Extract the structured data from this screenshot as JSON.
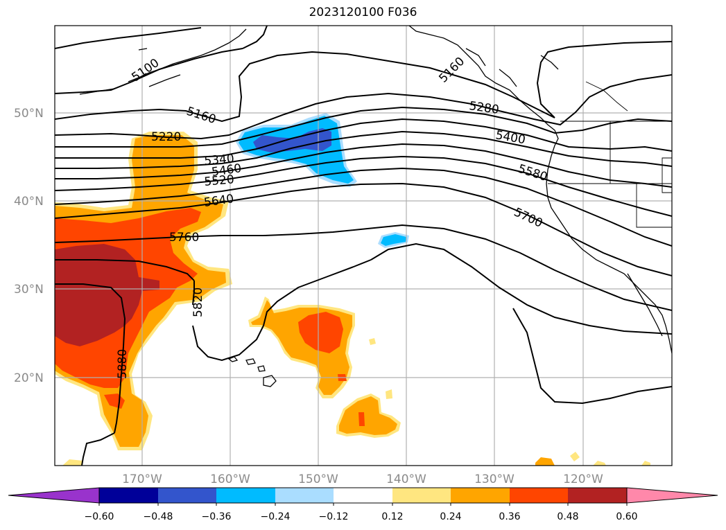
{
  "title": "2023120100 F036",
  "map": {
    "lat_labels": [
      "50°N",
      "40°N",
      "30°N",
      "20°N"
    ],
    "lon_labels": [
      "170°W",
      "160°W",
      "150°W",
      "140°W",
      "130°W",
      "120°W"
    ],
    "contour_labels": [
      "5100",
      "5160",
      "5160",
      "5220",
      "5280",
      "5340",
      "5400",
      "5460",
      "5520",
      "5580",
      "5640",
      "5700",
      "5760",
      "5820",
      "5880"
    ],
    "colorbar": {
      "ticks": [
        "−0.60",
        "−0.48",
        "−0.36",
        "−0.24",
        "−0.12",
        "0.12",
        "0.24",
        "0.36",
        "0.48",
        "0.60"
      ],
      "colors": [
        "#9933cc",
        "#000099",
        "#3355cc",
        "#00bbff",
        "#aaddff",
        "#ffffff",
        "#ffe680",
        "#ffa500",
        "#ff4500",
        "#b22222",
        "#ff88aa"
      ]
    }
  }
}
